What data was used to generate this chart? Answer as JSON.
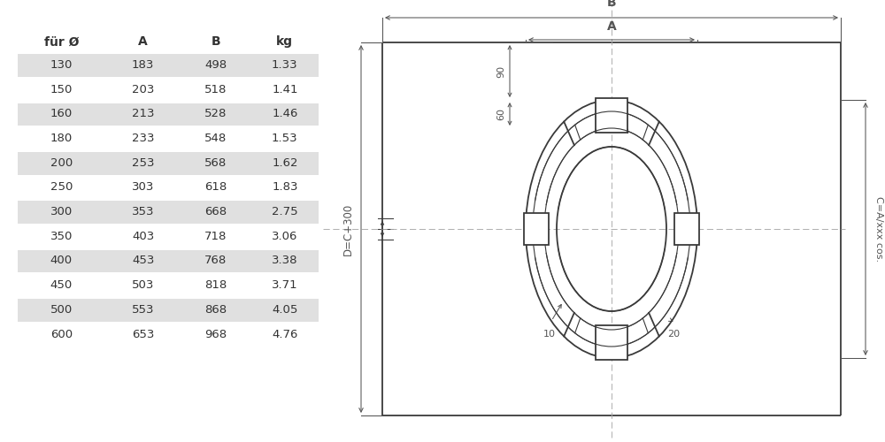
{
  "table_headers": [
    "für Ø",
    "A",
    "B",
    "kg"
  ],
  "table_rows": [
    [
      130,
      183,
      498,
      1.33
    ],
    [
      150,
      203,
      518,
      1.41
    ],
    [
      160,
      213,
      528,
      1.46
    ],
    [
      180,
      233,
      548,
      1.53
    ],
    [
      200,
      253,
      568,
      1.62
    ],
    [
      250,
      303,
      618,
      1.83
    ],
    [
      300,
      353,
      668,
      2.75
    ],
    [
      350,
      403,
      718,
      3.06
    ],
    [
      400,
      453,
      768,
      3.38
    ],
    [
      450,
      503,
      818,
      3.71
    ],
    [
      500,
      553,
      868,
      4.05
    ],
    [
      600,
      653,
      968,
      4.76
    ]
  ],
  "shaded_rows": [
    0,
    2,
    4,
    6,
    8,
    10
  ],
  "shade_color": "#e0e0e0",
  "bg_color": "#ffffff",
  "line_color": "#3a3a3a",
  "dim_color": "#555555",
  "text_color": "#333333"
}
